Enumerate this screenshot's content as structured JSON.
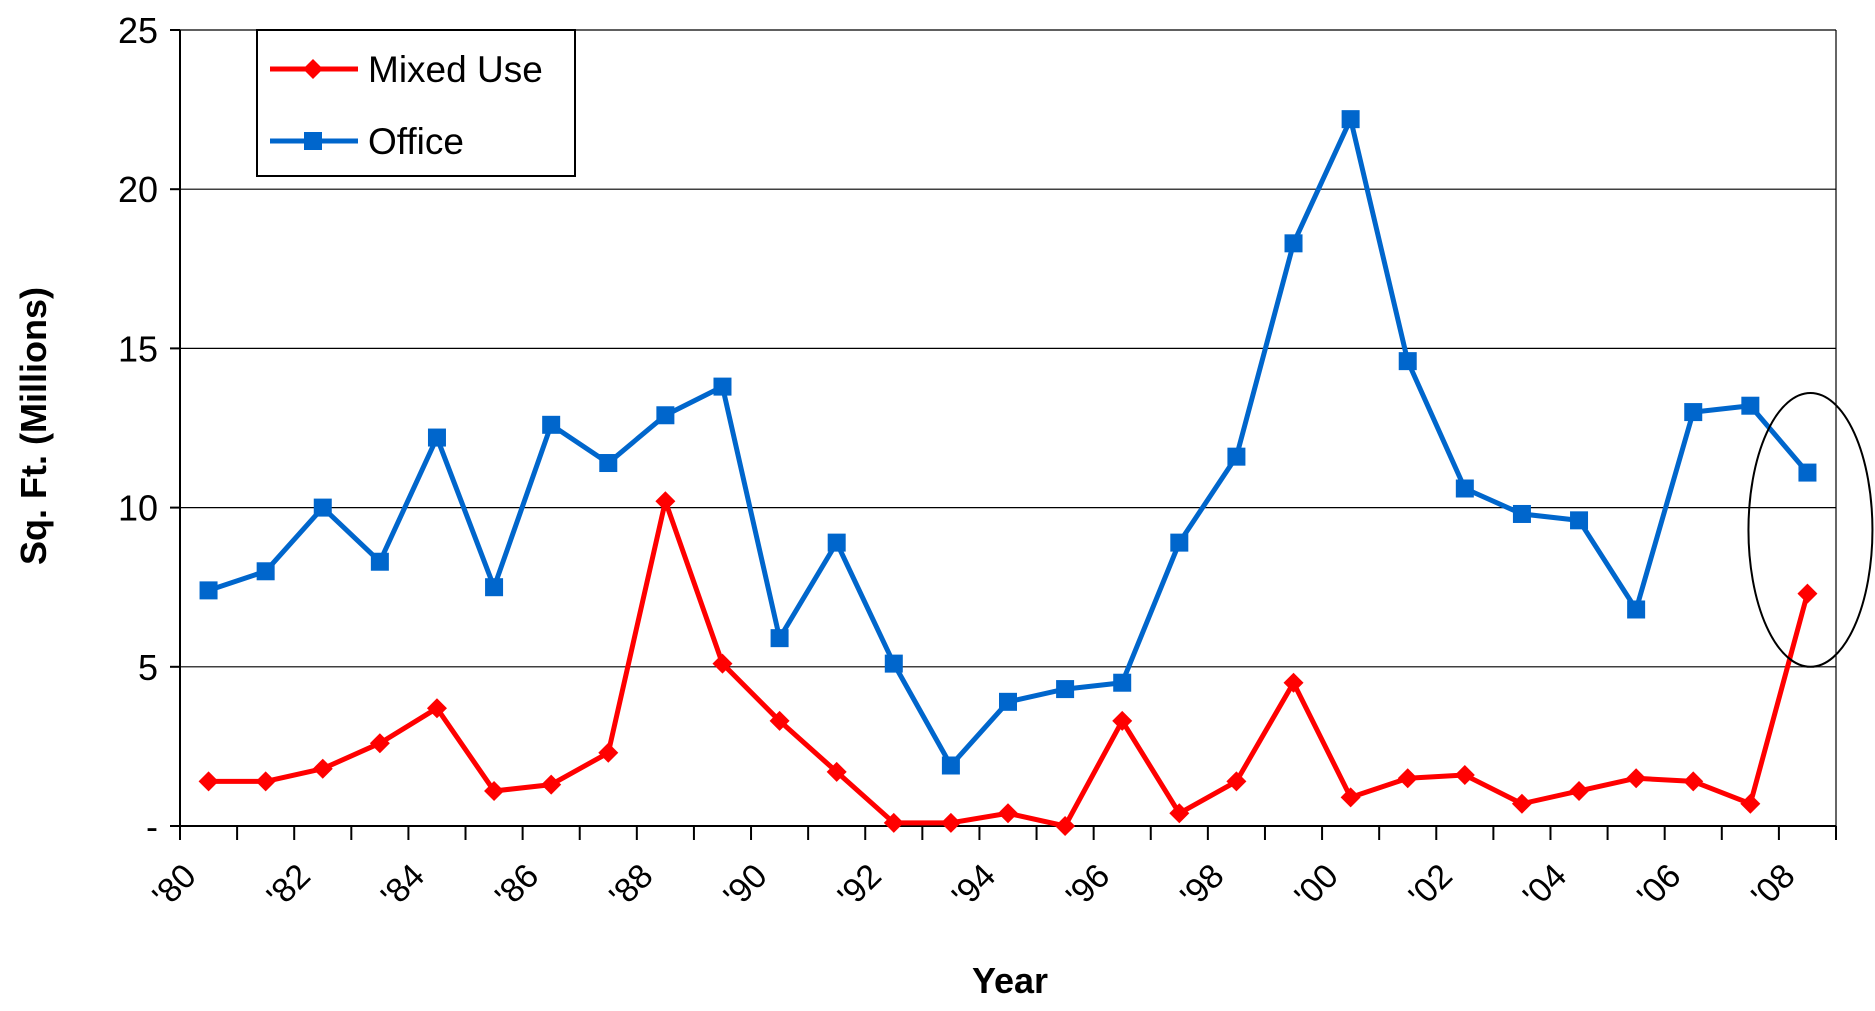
{
  "chart_data": {
    "type": "line",
    "title": "",
    "xlabel": "Year",
    "ylabel": "Sq. Ft. (Millions)",
    "ylim": [
      0,
      25
    ],
    "y_ticks": [
      {
        "value": 0,
        "label": "-"
      },
      {
        "value": 5,
        "label": "5"
      },
      {
        "value": 10,
        "label": "10"
      },
      {
        "value": 15,
        "label": "15"
      },
      {
        "value": 20,
        "label": "20"
      },
      {
        "value": 25,
        "label": "25"
      }
    ],
    "x_tick_labels": [
      "'80",
      "'82",
      "'84",
      "'86",
      "'88",
      "'90",
      "'92",
      "'94",
      "'96",
      "'98",
      "'00",
      "'02",
      "'04",
      "'06",
      "'08"
    ],
    "grid": "horizontal",
    "legend_position": "top-left",
    "series": [
      {
        "name": "Mixed Use",
        "color": "#ff0000",
        "marker": "diamond",
        "x": [
          1980,
          1981,
          1982,
          1983,
          1984,
          1985,
          1986,
          1987,
          1988,
          1989,
          1990,
          1991,
          1992,
          1993,
          1994,
          1995,
          1996,
          1997,
          1998,
          1999,
          2000,
          2001,
          2002,
          2003,
          2004,
          2005,
          2006,
          2007,
          2008
        ],
        "values": [
          1.4,
          1.4,
          1.8,
          2.6,
          3.7,
          1.1,
          1.3,
          2.3,
          10.2,
          5.1,
          3.3,
          1.7,
          0.1,
          0.1,
          0.4,
          0.0,
          3.3,
          0.4,
          1.4,
          4.5,
          0.9,
          1.5,
          1.6,
          0.7,
          1.1,
          1.5,
          1.4,
          0.7,
          7.3
        ]
      },
      {
        "name": "Office",
        "color": "#0066cc",
        "marker": "square",
        "x": [
          1980,
          1981,
          1982,
          1983,
          1984,
          1985,
          1986,
          1987,
          1988,
          1989,
          1990,
          1991,
          1992,
          1993,
          1994,
          1995,
          1996,
          1997,
          1998,
          1999,
          2000,
          2001,
          2002,
          2003,
          2004,
          2005,
          2006,
          2007,
          2008
        ],
        "values": [
          7.4,
          8.0,
          10.0,
          8.3,
          12.2,
          7.5,
          12.6,
          11.4,
          12.9,
          13.8,
          5.9,
          8.9,
          5.1,
          1.9,
          3.9,
          4.3,
          4.5,
          8.9,
          11.6,
          18.3,
          22.2,
          14.6,
          10.6,
          9.8,
          9.6,
          6.8,
          13.0,
          13.2,
          11.1
        ]
      }
    ],
    "annotations": [
      {
        "type": "ellipse",
        "around": "2008",
        "y_range": [
          5,
          13.6
        ],
        "color": "#000000"
      }
    ]
  }
}
